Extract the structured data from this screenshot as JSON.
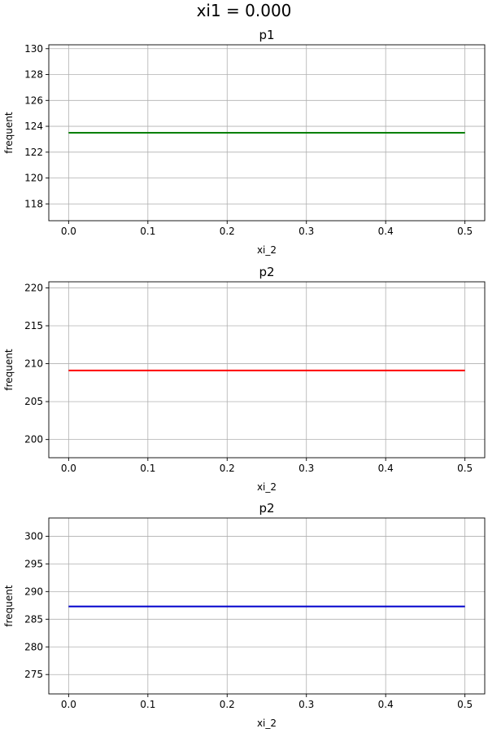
{
  "figure": {
    "suptitle": "xi1 = 0.000"
  },
  "chart_data": [
    {
      "type": "line",
      "title": "p1",
      "xlabel": "xi_2",
      "ylabel": "frequent",
      "xlim": [
        -0.025,
        0.525
      ],
      "ylim": [
        116.7,
        130.3
      ],
      "xticks": [
        0.0,
        0.1,
        0.2,
        0.3,
        0.4,
        0.5
      ],
      "xtick_labels": [
        "0.0",
        "0.1",
        "0.2",
        "0.3",
        "0.4",
        "0.5"
      ],
      "yticks": [
        118,
        120,
        122,
        124,
        126,
        128,
        130
      ],
      "ytick_labels": [
        "118",
        "120",
        "122",
        "124",
        "126",
        "128",
        "130"
      ],
      "grid": true,
      "series": [
        {
          "color": "#008000",
          "x": [
            0.0,
            0.5
          ],
          "y": [
            123.5,
            123.5
          ]
        }
      ]
    },
    {
      "type": "line",
      "title": "p2",
      "xlabel": "xi_2",
      "ylabel": "frequent",
      "xlim": [
        -0.025,
        0.525
      ],
      "ylim": [
        197.6,
        220.8
      ],
      "xticks": [
        0.0,
        0.1,
        0.2,
        0.3,
        0.4,
        0.5
      ],
      "xtick_labels": [
        "0.0",
        "0.1",
        "0.2",
        "0.3",
        "0.4",
        "0.5"
      ],
      "yticks": [
        200,
        205,
        210,
        215,
        220
      ],
      "ytick_labels": [
        "200",
        "205",
        "210",
        "215",
        "220"
      ],
      "grid": true,
      "series": [
        {
          "color": "#ff0000",
          "x": [
            0.0,
            0.5
          ],
          "y": [
            209.1,
            209.1
          ]
        }
      ]
    },
    {
      "type": "line",
      "title": "p2",
      "xlabel": "xi_2",
      "ylabel": "frequent",
      "xlim": [
        -0.025,
        0.525
      ],
      "ylim": [
        271.5,
        303.3
      ],
      "xticks": [
        0.0,
        0.1,
        0.2,
        0.3,
        0.4,
        0.5
      ],
      "xtick_labels": [
        "0.0",
        "0.1",
        "0.2",
        "0.3",
        "0.4",
        "0.5"
      ],
      "yticks": [
        275,
        280,
        285,
        290,
        295,
        300
      ],
      "ytick_labels": [
        "275",
        "280",
        "285",
        "290",
        "295",
        "300"
      ],
      "grid": true,
      "series": [
        {
          "color": "#0000cc",
          "x": [
            0.0,
            0.5
          ],
          "y": [
            287.3,
            287.3
          ]
        }
      ]
    }
  ]
}
